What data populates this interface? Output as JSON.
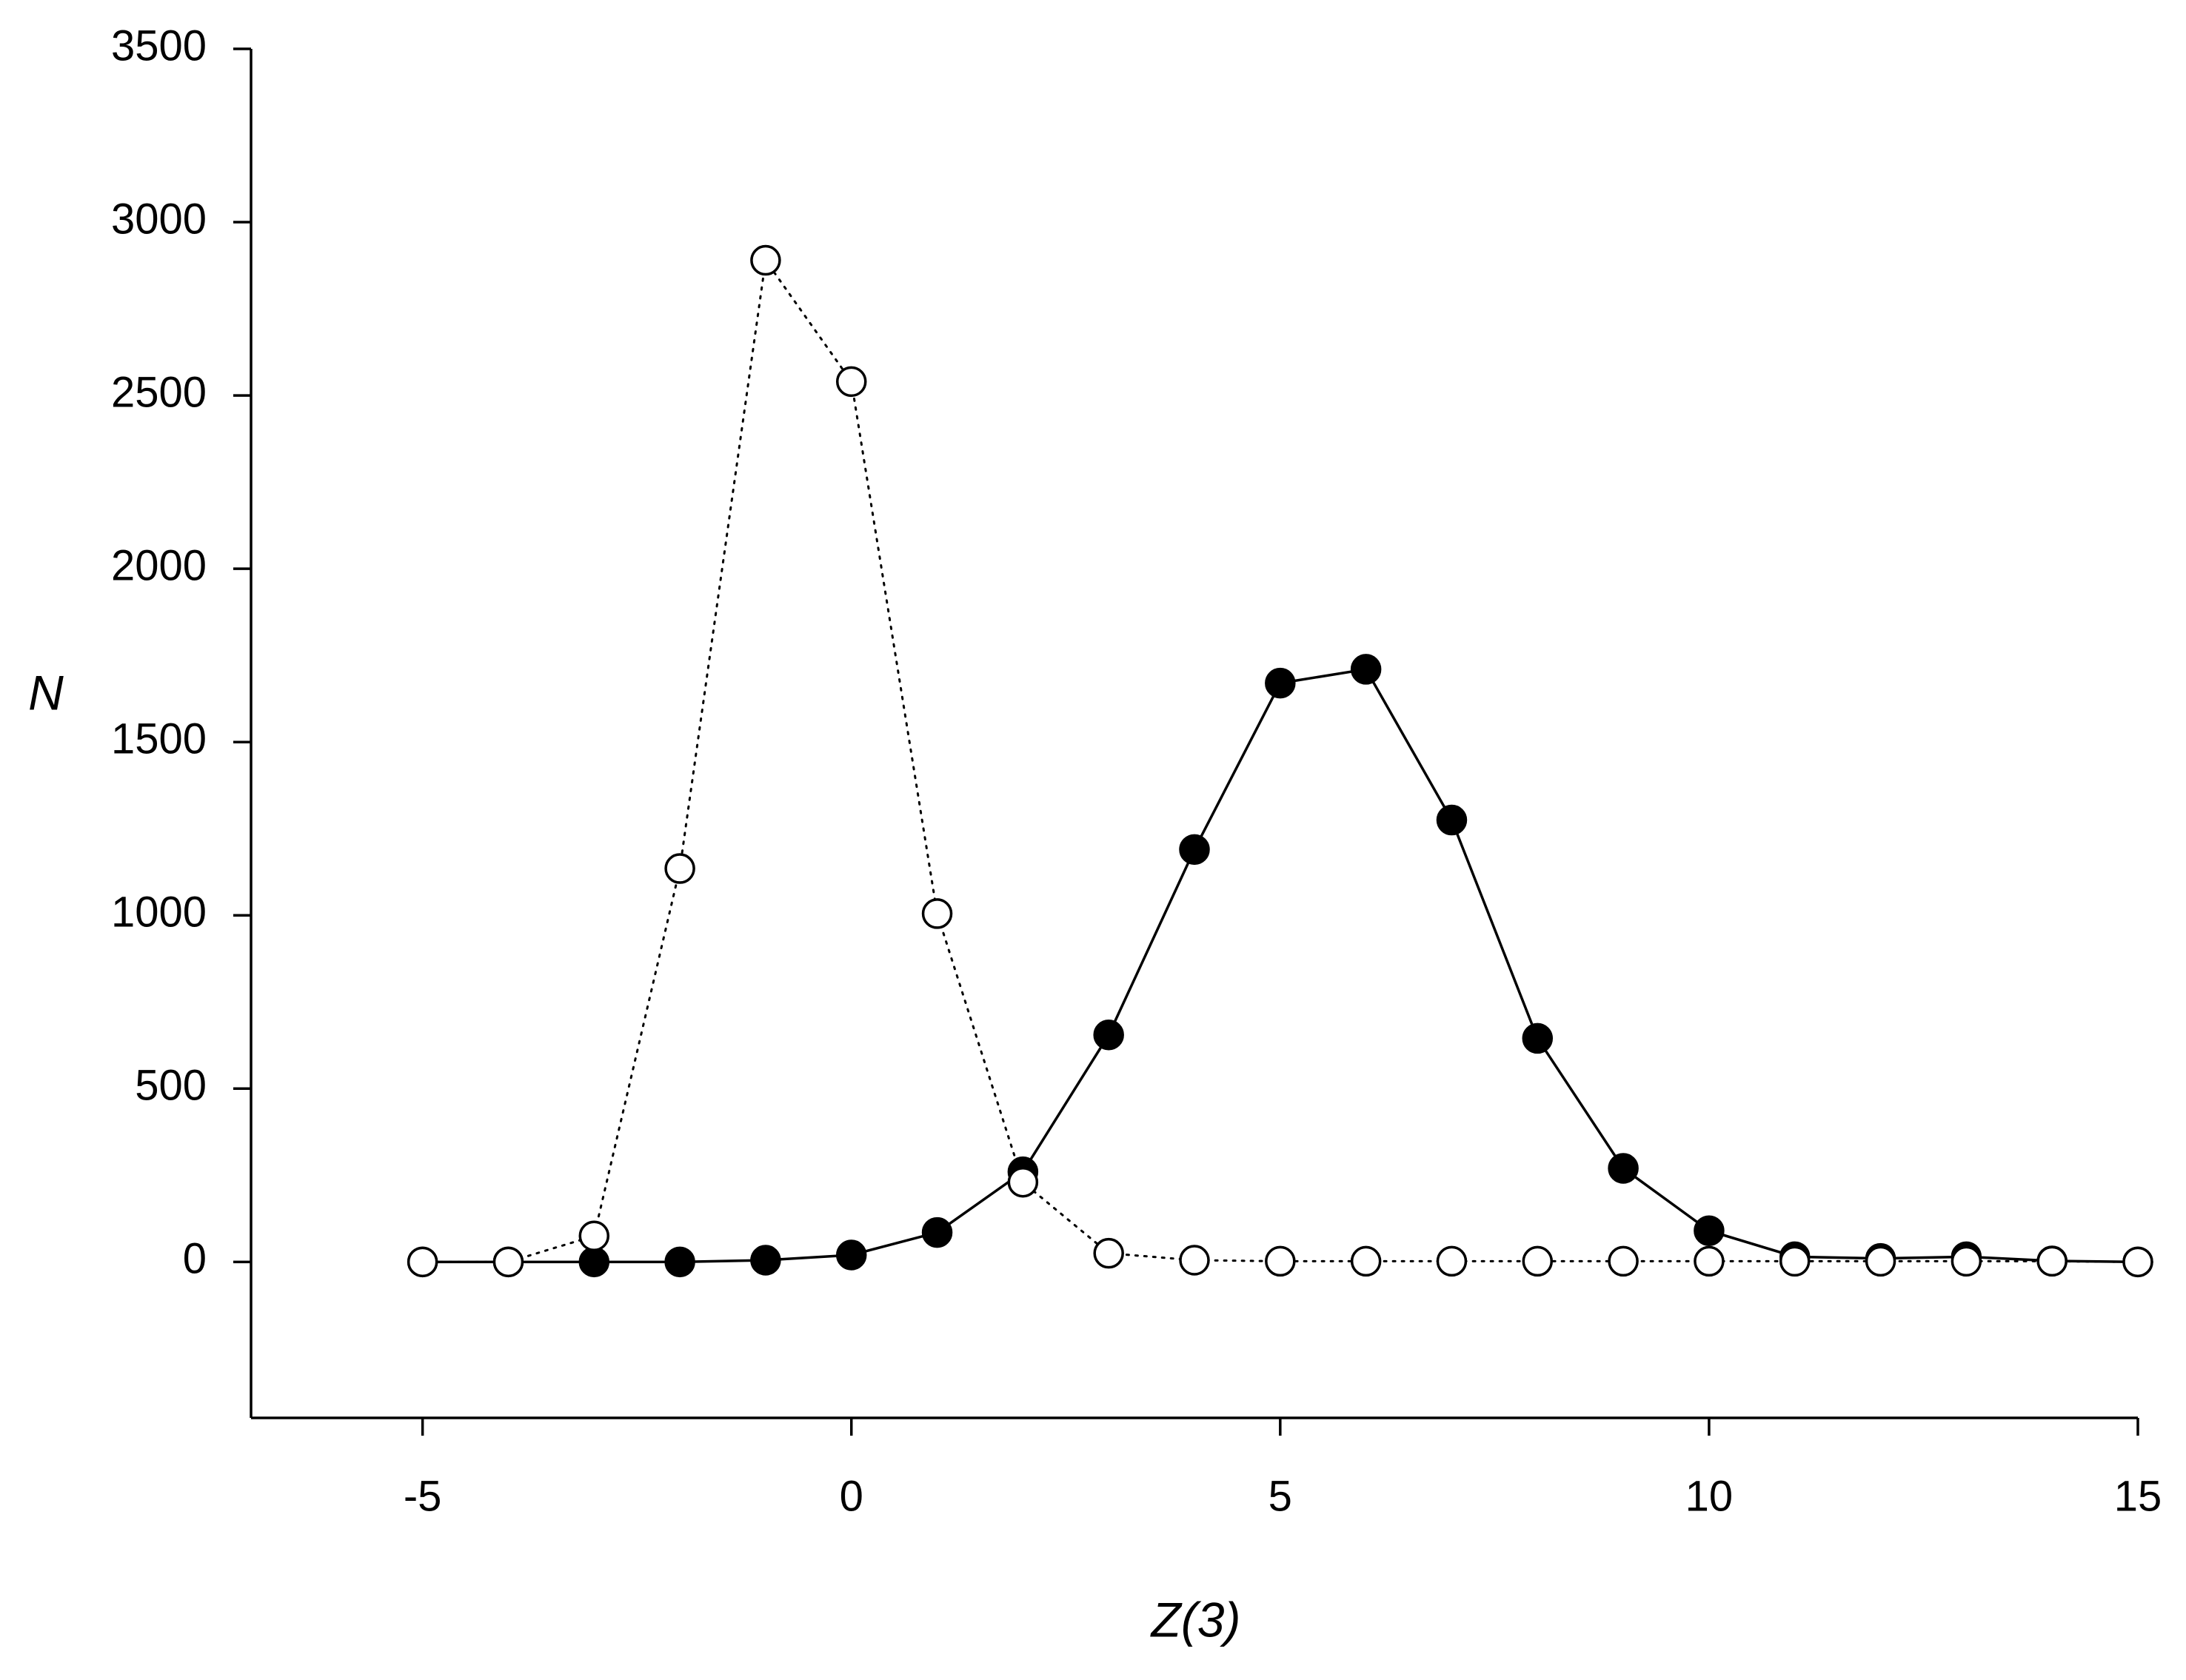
{
  "chart_data": {
    "type": "line",
    "x_label": "Z(3)",
    "y_label": "N",
    "x": [
      -5,
      -4,
      -3,
      -2,
      -1,
      0,
      1,
      2,
      3,
      4,
      5,
      6,
      7,
      8,
      9,
      10,
      11,
      12,
      13,
      14,
      15
    ],
    "series": [
      {
        "color": "#000000",
        "marker_fill": "#000000",
        "line_style": "solid",
        "values": [
          0,
          0,
          0,
          0,
          5,
          20,
          85,
          260,
          655,
          1190,
          1670,
          1710,
          1275,
          645,
          270,
          90,
          15,
          10,
          15,
          3,
          0
        ]
      },
      {
        "color": "#000000",
        "marker_fill": "#ffffff",
        "line_style": "dotted",
        "values": [
          0,
          0,
          75,
          1135,
          2890,
          2540,
          1005,
          230,
          25,
          5,
          2,
          2,
          2,
          2,
          2,
          2,
          2,
          2,
          2,
          2,
          0
        ]
      }
    ],
    "xlim": [
      -7,
      15
    ],
    "xticks": [
      -5,
      0,
      5,
      10,
      15
    ],
    "ylim": [
      -450,
      3500
    ],
    "yticks": [
      0,
      500,
      1000,
      1500,
      2000,
      2500,
      3000,
      3500
    ],
    "grid": false
  }
}
